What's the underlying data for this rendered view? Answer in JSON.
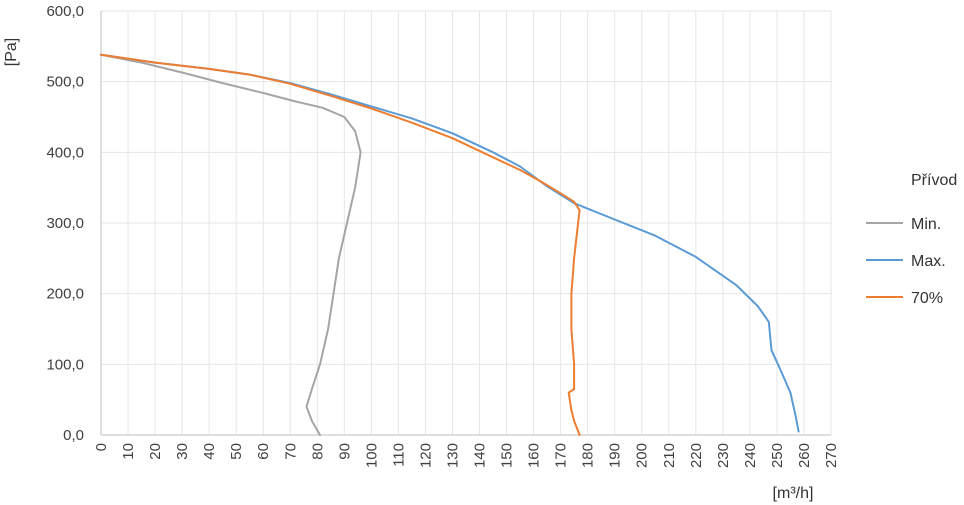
{
  "chart_data": {
    "type": "line",
    "ylabel": "[Pa]",
    "xlabel": "[m³/h]",
    "xlim": [
      0,
      270
    ],
    "ylim": [
      0,
      600
    ],
    "x_ticks": [
      0,
      10,
      20,
      30,
      40,
      50,
      60,
      70,
      80,
      90,
      100,
      110,
      120,
      130,
      140,
      150,
      160,
      170,
      180,
      190,
      200,
      210,
      220,
      230,
      240,
      250,
      260,
      270
    ],
    "y_ticks": [
      0,
      100,
      200,
      300,
      400,
      500,
      600
    ],
    "y_tick_labels": [
      "0,0",
      "100,0",
      "200,0",
      "300,0",
      "400,0",
      "500,0",
      "600,0"
    ],
    "grid": true,
    "legend_title": "Přívod",
    "legend_position": "right",
    "series": [
      {
        "name": "Min.",
        "color": "#a5a5a5",
        "points": [
          [
            0,
            538
          ],
          [
            15,
            527
          ],
          [
            30,
            513
          ],
          [
            45,
            498
          ],
          [
            60,
            484
          ],
          [
            72,
            472
          ],
          [
            82,
            463
          ],
          [
            90,
            450
          ],
          [
            94,
            430
          ],
          [
            96,
            400
          ],
          [
            94,
            350
          ],
          [
            91,
            300
          ],
          [
            88,
            250
          ],
          [
            86,
            200
          ],
          [
            84,
            150
          ],
          [
            81,
            100
          ],
          [
            78,
            65
          ],
          [
            76,
            40
          ],
          [
            78,
            20
          ],
          [
            81,
            0
          ]
        ]
      },
      {
        "name": "Max.",
        "color": "#5b9bd5",
        "points": [
          [
            0,
            538
          ],
          [
            20,
            527
          ],
          [
            40,
            518
          ],
          [
            55,
            510
          ],
          [
            70,
            498
          ],
          [
            85,
            482
          ],
          [
            100,
            465
          ],
          [
            115,
            448
          ],
          [
            130,
            427
          ],
          [
            145,
            400
          ],
          [
            155,
            380
          ],
          [
            165,
            352
          ],
          [
            175,
            328
          ],
          [
            190,
            305
          ],
          [
            205,
            282
          ],
          [
            220,
            252
          ],
          [
            235,
            212
          ],
          [
            243,
            182
          ],
          [
            247,
            160
          ],
          [
            248,
            120
          ],
          [
            251,
            95
          ],
          [
            255,
            60
          ],
          [
            257,
            25
          ],
          [
            258,
            5
          ]
        ]
      },
      {
        "name": "70%",
        "color": "#ed7d31",
        "points": [
          [
            0,
            538
          ],
          [
            20,
            527
          ],
          [
            40,
            518
          ],
          [
            55,
            510
          ],
          [
            70,
            497
          ],
          [
            85,
            480
          ],
          [
            100,
            462
          ],
          [
            115,
            442
          ],
          [
            130,
            420
          ],
          [
            145,
            393
          ],
          [
            155,
            375
          ],
          [
            163,
            358
          ],
          [
            170,
            342
          ],
          [
            175,
            330
          ],
          [
            177,
            318
          ],
          [
            176,
            285
          ],
          [
            175,
            250
          ],
          [
            174,
            200
          ],
          [
            174,
            150
          ],
          [
            175,
            100
          ],
          [
            175,
            65
          ],
          [
            173,
            60
          ],
          [
            174,
            35
          ],
          [
            175,
            20
          ],
          [
            177,
            0
          ]
        ]
      }
    ]
  }
}
